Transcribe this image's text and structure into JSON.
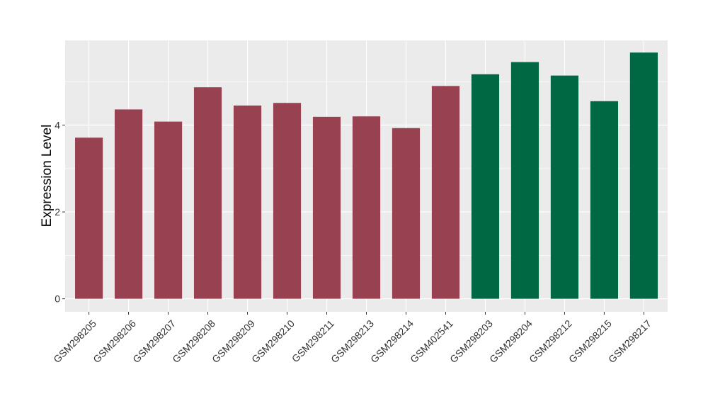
{
  "chart_data": {
    "type": "bar",
    "title": "",
    "xlabel": "",
    "ylabel": "Expression Level",
    "ylim": [
      -0.3,
      5.95
    ],
    "yticks": [
      0,
      2,
      4
    ],
    "yticks_labels": [
      "0",
      "2",
      "4"
    ],
    "grid": true,
    "categories": [
      "GSM298205",
      "GSM298206",
      "GSM298207",
      "GSM298208",
      "GSM298209",
      "GSM298210",
      "GSM298211",
      "GSM298213",
      "GSM298214",
      "GSM402541",
      "GSM298203",
      "GSM298204",
      "GSM298212",
      "GSM298215",
      "GSM298217"
    ],
    "values": [
      3.71,
      4.36,
      4.08,
      4.87,
      4.45,
      4.51,
      4.19,
      4.2,
      3.93,
      4.9,
      5.17,
      5.45,
      5.14,
      4.55,
      5.67
    ],
    "groups": [
      0,
      0,
      0,
      0,
      0,
      0,
      0,
      0,
      0,
      0,
      1,
      1,
      1,
      1,
      1
    ],
    "group_colors": [
      "#984150",
      "#006843"
    ],
    "background_color": "#ebebeb",
    "grid_color": "#ffffff"
  }
}
